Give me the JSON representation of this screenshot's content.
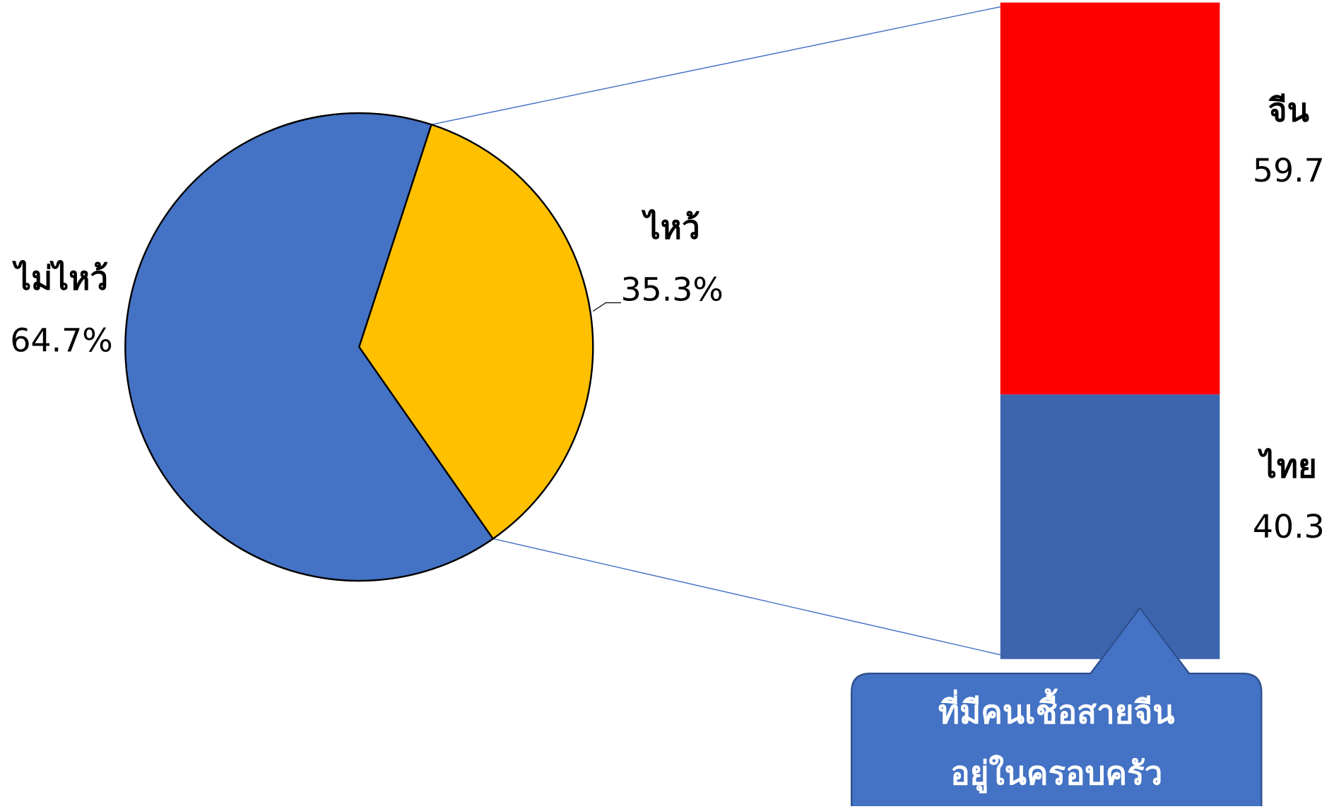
{
  "chart_data": [
    {
      "type": "pie",
      "categories": [
        "ไม่ไหว้",
        "ไหว้"
      ],
      "values": [
        64.7,
        35.3
      ],
      "value_labels": [
        "64.7%",
        "35.3%"
      ],
      "colors": [
        "#4472c4",
        "#ffc000"
      ]
    },
    {
      "type": "bar",
      "series": [
        {
          "name": "จีน",
          "color": "#ff0000",
          "values": [
            59.7
          ]
        },
        {
          "name": "ไทย",
          "color": "#3c65ad",
          "values": [
            40.3
          ]
        }
      ],
      "annotation": [
        "ที่มีคนเชื้อสายจีน",
        "อยู่ในครอบครัว"
      ]
    }
  ]
}
